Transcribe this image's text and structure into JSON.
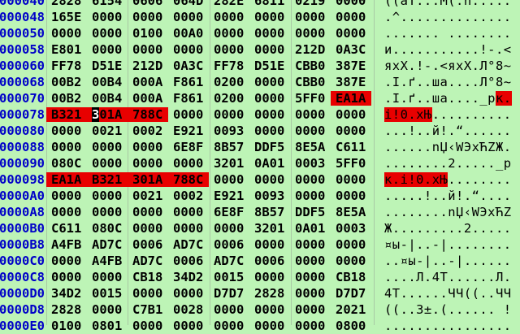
{
  "colors": {
    "background": "#bdf4b6",
    "address": "#0000c8",
    "highlight": "#e80000",
    "cursor": "#000000"
  },
  "cursor": {
    "row": "00000078",
    "word": 1,
    "char": 0
  },
  "rows": [
    {
      "addr": "00000040",
      "words": [
        "2828",
        "6154",
        "0606",
        "064D",
        "282E",
        "6811",
        "0219",
        "0000"
      ],
      "hl": [],
      "text": [
        {
          "t": "((aT...M(.h....."
        }
      ]
    },
    {
      "addr": "00000048",
      "words": [
        "165E",
        "0000",
        "0000",
        "0000",
        "0000",
        "0000",
        "0000",
        "0000"
      ],
      "hl": [],
      "text": [
        {
          "t": ".^.............."
        }
      ]
    },
    {
      "addr": "00000050",
      "words": [
        "0000",
        "0000",
        "0100",
        "00A0",
        "0000",
        "0000",
        "0000",
        "0000"
      ],
      "hl": [],
      "text": [
        {
          "t": "....... ........"
        }
      ]
    },
    {
      "addr": "00000058",
      "words": [
        "E801",
        "0000",
        "0000",
        "0000",
        "0000",
        "0000",
        "212D",
        "0A3C"
      ],
      "hl": [],
      "text": [
        {
          "t": "и...........!-.<"
        }
      ]
    },
    {
      "addr": "00000060",
      "words": [
        "FF78",
        "D51E",
        "212D",
        "0A3C",
        "FF78",
        "D51E",
        "CBB0",
        "387E"
      ],
      "hl": [],
      "text": [
        {
          "t": "яхХ.!-.<яхХ.Л°8~"
        }
      ]
    },
    {
      "addr": "00000068",
      "words": [
        "00B2",
        "00B4",
        "000A",
        "F861",
        "0200",
        "0000",
        "CBB0",
        "387E"
      ],
      "hl": [],
      "text": [
        {
          "t": ".І.ґ..ша....Л°8~"
        }
      ]
    },
    {
      "addr": "00000070",
      "words": [
        "00B2",
        "00B4",
        "000A",
        "F861",
        "0200",
        "0000",
        "5FF0",
        "EA1A"
      ],
      "hl": [
        7
      ],
      "text": [
        {
          "t": ".І.ґ..ша...._р"
        },
        {
          "t": "к.",
          "hl": true
        }
      ]
    },
    {
      "addr": "00000078",
      "words": [
        "B321",
        "301A",
        "788C",
        "0000",
        "0000",
        "0000",
        "0000",
        "0000"
      ],
      "hl": [
        0,
        1,
        2
      ],
      "text": [
        {
          "t": "і!0.xЊ",
          "hl": true
        },
        {
          "t": ".........."
        }
      ]
    },
    {
      "addr": "00000080",
      "words": [
        "0000",
        "0021",
        "0002",
        "E921",
        "0093",
        "0000",
        "0000",
        "0000"
      ],
      "hl": [],
      "text": [
        {
          "t": "...!..й!.“......"
        }
      ]
    },
    {
      "addr": "00000088",
      "words": [
        "0000",
        "0000",
        "0000",
        "6E8F",
        "8B57",
        "DDF5",
        "8E5A",
        "C611"
      ],
      "hl": [],
      "text": [
        {
          "t": "......nЏ‹WЭхЋZЖ."
        }
      ]
    },
    {
      "addr": "00000090",
      "words": [
        "080C",
        "0000",
        "0000",
        "0000",
        "3201",
        "0A01",
        "0003",
        "5FF0"
      ],
      "hl": [],
      "text": [
        {
          "t": "........2....._р"
        }
      ]
    },
    {
      "addr": "00000098",
      "words": [
        "EA1A",
        "B321",
        "301A",
        "788C",
        "0000",
        "0000",
        "0000",
        "0000"
      ],
      "hl": [
        0,
        1,
        2,
        3
      ],
      "text": [
        {
          "t": "к.і!0.xЊ",
          "hl": true
        },
        {
          "t": "........"
        }
      ]
    },
    {
      "addr": "000000A0",
      "words": [
        "0000",
        "0000",
        "0021",
        "0002",
        "E921",
        "0093",
        "0000",
        "0000"
      ],
      "hl": [],
      "text": [
        {
          "t": ".....!..й!.“...."
        }
      ]
    },
    {
      "addr": "000000A8",
      "words": [
        "0000",
        "0000",
        "0000",
        "0000",
        "6E8F",
        "8B57",
        "DDF5",
        "8E5A"
      ],
      "hl": [],
      "text": [
        {
          "t": "........nЏ‹WЭхЋZ"
        }
      ]
    },
    {
      "addr": "000000B0",
      "words": [
        "C611",
        "080C",
        "0000",
        "0000",
        "0000",
        "3201",
        "0A01",
        "0003"
      ],
      "hl": [],
      "text": [
        {
          "t": "Ж.........2....."
        }
      ]
    },
    {
      "addr": "000000B8",
      "words": [
        "A4FB",
        "AD7C",
        "0006",
        "AD7C",
        "0006",
        "0000",
        "0000",
        "0000"
      ],
      "hl": [],
      "text": [
        {
          "t": "¤ы-|..-|........"
        }
      ]
    },
    {
      "addr": "000000C0",
      "words": [
        "0000",
        "A4FB",
        "AD7C",
        "0006",
        "AD7C",
        "0006",
        "0000",
        "0000"
      ],
      "hl": [],
      "text": [
        {
          "t": "..¤ы-|..-|......"
        }
      ]
    },
    {
      "addr": "000000C8",
      "words": [
        "0000",
        "0000",
        "CB18",
        "34D2",
        "0015",
        "0000",
        "0000",
        "CB18"
      ],
      "hl": [],
      "text": [
        {
          "t": "....Л.4Т......Л."
        }
      ]
    },
    {
      "addr": "000000D0",
      "words": [
        "34D2",
        "0015",
        "0000",
        "0000",
        "D7D7",
        "2828",
        "0000",
        "D7D7"
      ],
      "hl": [],
      "text": [
        {
          "t": "4Т......ЧЧ((..ЧЧ"
        }
      ]
    },
    {
      "addr": "000000D8",
      "words": [
        "2828",
        "0000",
        "C7B1",
        "0028",
        "0000",
        "0000",
        "0000",
        "2021"
      ],
      "hl": [],
      "text": [
        {
          "t": "((..З±.(...... !"
        }
      ]
    },
    {
      "addr": "000000E0",
      "words": [
        "0100",
        "0801",
        "0000",
        "0000",
        "0000",
        "0000",
        "0000",
        "0800"
      ],
      "hl": [],
      "text": [
        {
          "t": "................"
        }
      ]
    }
  ]
}
